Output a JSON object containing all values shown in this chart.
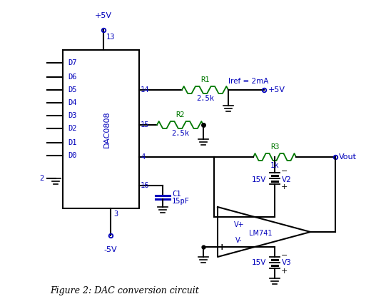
{
  "bg_color": "#ffffff",
  "blue_color": "#0000bb",
  "green_color": "#007700",
  "black_color": "#000000",
  "fig_caption": "Figure 2: DAC conversion circuit",
  "chip_label": "DAC0808",
  "pin_labels": [
    "D7",
    "D6",
    "D5",
    "D4",
    "D3",
    "D2",
    "D1",
    "D0"
  ],
  "r1_label": "R1",
  "r1_val": "2.5k",
  "r2_label": "R2",
  "r2_val": "2.5k",
  "r3_label": "R3",
  "r3_val": "1k",
  "c1_label": "C1",
  "c1_val": "15pF",
  "iref_label": "Iref = 2mA",
  "v2_label": "V2",
  "v2_val": "15V",
  "v3_label": "V3",
  "v3_val": "15V",
  "vout_label": "Vout",
  "vcc_label": "+5V",
  "vee_label": "-5V",
  "opamp_label": "LM741",
  "pin13": "13",
  "pin14": "14",
  "pin15": "15",
  "pin4": "4",
  "pin16": "16",
  "pin3": "3",
  "pin2": "2",
  "vplus_label": "V+",
  "vminus_label": "V-"
}
